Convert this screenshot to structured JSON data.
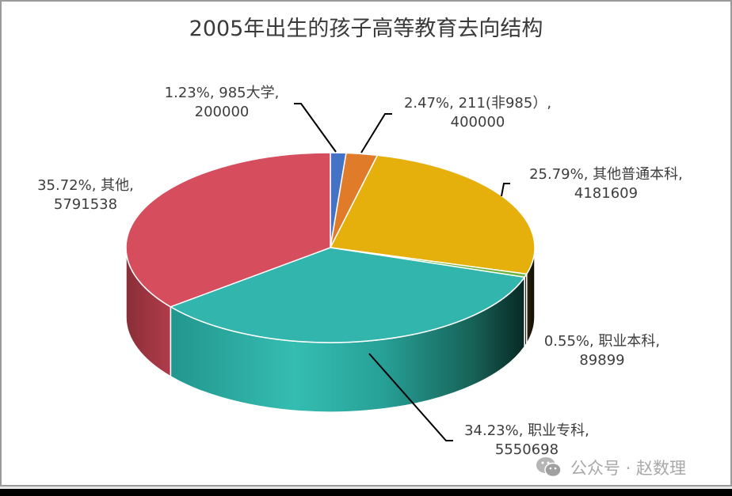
{
  "chart_data": {
    "type": "pie",
    "style": "3d",
    "title": "2005年出生的孩子高等教育去向结构",
    "start_angle": "12 o'clock, clockwise",
    "label_format": "percent, category, value",
    "slices": [
      {
        "label": "985大学",
        "value": 200000,
        "percent": 1.23,
        "percent_text": "1.23%",
        "color": "#4472C4"
      },
      {
        "label": "211(非985）",
        "value": 400000,
        "percent": 2.47,
        "percent_text": "2.47%",
        "color": "#E07B2A"
      },
      {
        "label": "其他普通本科",
        "value": 4181609,
        "percent": 25.79,
        "percent_text": "25.79%",
        "color": "#E6B00C"
      },
      {
        "label": "职业本科",
        "value": 89899,
        "percent": 0.55,
        "percent_text": "0.55%",
        "color": "#6CB33F"
      },
      {
        "label": "职业专科",
        "value": 5550698,
        "percent": 34.23,
        "percent_text": "34.23%",
        "color": "#31B5AC"
      },
      {
        "label": "其他",
        "value": 5791538,
        "percent": 35.72,
        "percent_text": "35.72%",
        "color": "#D64E5E"
      }
    ],
    "legend": "none"
  },
  "labels": {
    "s985": {
      "line1": "1.23%, 985大学,",
      "line2": "200000"
    },
    "s211": {
      "line1": "2.47%, 211(非985）,",
      "line2": "400000"
    },
    "sbk": {
      "line1": "25.79%, 其他普通本科,",
      "line2": "4181609"
    },
    "szybk": {
      "line1": "0.55%, 职业本科,",
      "line2": "89899"
    },
    "szk": {
      "line1": "34.23%, 职业专科,",
      "line2": "5550698"
    },
    "sqt": {
      "line1": "35.72%, 其他,",
      "line2": "5791538"
    }
  },
  "watermark": {
    "text": "公众号 · 赵数理",
    "icon": "wechat-icon"
  }
}
